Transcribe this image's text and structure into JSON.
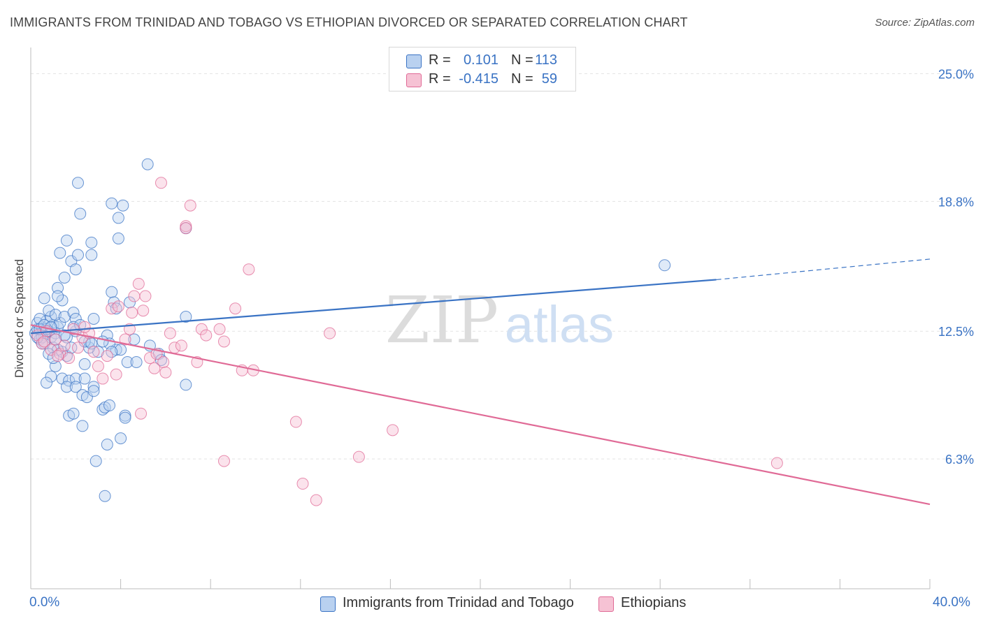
{
  "title": "IMMIGRANTS FROM TRINIDAD AND TOBAGO VS ETHIOPIAN DIVORCED OR SEPARATED CORRELATION CHART",
  "source": "Source: ZipAtlas.com",
  "watermark": {
    "zip": "ZIP",
    "atlas": "atlas"
  },
  "colors": {
    "blue": "#3a73c4",
    "blue_fill": "#b9d1f0",
    "pink": "#e06a96",
    "pink_fill": "#f6c2d4",
    "axis_text": "#3a73c4"
  },
  "legend": {
    "rows": [
      {
        "r_label": "R =",
        "r_value": "0.101",
        "n_label": "N =",
        "n_value": "113",
        "color": "blue"
      },
      {
        "r_label": "R =",
        "r_value": "-0.415",
        "n_label": "N =",
        "n_value": "59",
        "color": "pink"
      }
    ]
  },
  "bottom_legend": [
    "Immigrants from Trinidad and Tobago",
    "Ethiopians"
  ],
  "chart_data": {
    "type": "scatter",
    "xlabel": "",
    "ylabel": "Divorced or Separated",
    "xlim": [
      0,
      40
    ],
    "ylim": [
      0,
      26.2
    ],
    "x_tick_labels": [
      "0.0%",
      "40.0%"
    ],
    "y_ticks": [
      6.3,
      12.5,
      18.8,
      25.0
    ],
    "y_tick_labels": [
      "6.3%",
      "12.5%",
      "18.8%",
      "25.0%"
    ],
    "grid": "horizontal dashed",
    "legend_placement": "top-center",
    "series": [
      {
        "name": "Immigrants from Trinidad and Tobago",
        "color": "blue",
        "trend": {
          "x0": 0,
          "y0": 12.4,
          "x1": 30.5,
          "y1": 15.0,
          "dash_to_x": 40,
          "dash_to_y": 16.0
        },
        "points": [
          [
            0.2,
            12.4
          ],
          [
            0.3,
            12.6
          ],
          [
            0.4,
            12.1
          ],
          [
            0.5,
            12.7
          ],
          [
            0.3,
            12.9
          ],
          [
            0.6,
            12.3
          ],
          [
            0.7,
            13.0
          ],
          [
            0.8,
            12.5
          ],
          [
            0.9,
            12.2
          ],
          [
            1.0,
            12.8
          ],
          [
            0.4,
            13.1
          ],
          [
            0.6,
            11.9
          ],
          [
            0.8,
            12.5
          ],
          [
            1.1,
            12.4
          ],
          [
            1.2,
            12.7
          ],
          [
            0.5,
            12.2
          ],
          [
            0.7,
            12.6
          ],
          [
            0.9,
            13.2
          ],
          [
            1.0,
            11.7
          ],
          [
            1.3,
            12.9
          ],
          [
            0.6,
            14.1
          ],
          [
            0.8,
            13.5
          ],
          [
            1.1,
            13.3
          ],
          [
            1.4,
            14.0
          ],
          [
            1.2,
            14.6
          ],
          [
            1.5,
            15.1
          ],
          [
            1.3,
            16.3
          ],
          [
            1.6,
            16.9
          ],
          [
            1.8,
            15.9
          ],
          [
            2.0,
            15.5
          ],
          [
            2.1,
            16.2
          ],
          [
            2.7,
            16.2
          ],
          [
            2.7,
            16.8
          ],
          [
            2.2,
            18.2
          ],
          [
            3.6,
            18.7
          ],
          [
            4.1,
            18.6
          ],
          [
            3.9,
            18.0
          ],
          [
            2.1,
            19.7
          ],
          [
            3.9,
            17.0
          ],
          [
            5.2,
            20.6
          ],
          [
            6.9,
            17.5
          ],
          [
            1.2,
            14.2
          ],
          [
            1.5,
            13.2
          ],
          [
            1.9,
            13.4
          ],
          [
            2.0,
            13.1
          ],
          [
            2.8,
            13.1
          ],
          [
            3.4,
            12.3
          ],
          [
            3.6,
            14.4
          ],
          [
            3.7,
            13.9
          ],
          [
            3.8,
            13.6
          ],
          [
            4.4,
            13.9
          ],
          [
            1.1,
            10.8
          ],
          [
            0.9,
            10.3
          ],
          [
            0.7,
            10.0
          ],
          [
            1.4,
            10.2
          ],
          [
            1.7,
            10.1
          ],
          [
            1.6,
            9.8
          ],
          [
            2.0,
            10.2
          ],
          [
            2.4,
            10.9
          ],
          [
            2.4,
            10.2
          ],
          [
            2.0,
            9.8
          ],
          [
            2.3,
            9.4
          ],
          [
            2.5,
            9.3
          ],
          [
            2.8,
            9.8
          ],
          [
            2.8,
            9.6
          ],
          [
            3.2,
            8.7
          ],
          [
            3.3,
            8.8
          ],
          [
            3.5,
            8.9
          ],
          [
            4.2,
            8.4
          ],
          [
            4.2,
            8.3
          ],
          [
            1.7,
            8.4
          ],
          [
            1.9,
            8.5
          ],
          [
            2.3,
            7.9
          ],
          [
            3.4,
            7.0
          ],
          [
            4.0,
            7.3
          ],
          [
            2.9,
            6.2
          ],
          [
            3.3,
            4.5
          ],
          [
            4.6,
            12.1
          ],
          [
            5.3,
            11.8
          ],
          [
            5.7,
            11.4
          ],
          [
            5.8,
            11.1
          ],
          [
            3.8,
            11.6
          ],
          [
            4.0,
            11.6
          ],
          [
            3.5,
            11.9
          ],
          [
            3.0,
            11.5
          ],
          [
            2.6,
            11.7
          ],
          [
            2.6,
            12.0
          ],
          [
            1.4,
            11.5
          ],
          [
            1.6,
            11.3
          ],
          [
            1.8,
            11.7
          ],
          [
            4.3,
            11.0
          ],
          [
            4.7,
            11.0
          ],
          [
            3.6,
            11.5
          ],
          [
            6.9,
            13.2
          ],
          [
            6.9,
            9.9
          ],
          [
            28.2,
            15.7
          ],
          [
            1.2,
            11.6
          ],
          [
            1.6,
            12.2
          ],
          [
            2.0,
            12.5
          ],
          [
            2.4,
            12.0
          ],
          [
            0.5,
            11.9
          ],
          [
            0.3,
            12.2
          ],
          [
            0.8,
            11.4
          ],
          [
            1.0,
            11.2
          ],
          [
            1.9,
            12.7
          ],
          [
            2.2,
            12.8
          ],
          [
            0.4,
            12.6
          ],
          [
            0.6,
            12.8
          ],
          [
            1.1,
            12.1
          ],
          [
            1.5,
            12.3
          ],
          [
            2.7,
            11.9
          ],
          [
            3.2,
            12.0
          ],
          [
            0.9,
            12.7
          ]
        ]
      },
      {
        "name": "Ethiopians",
        "color": "pink",
        "trend": {
          "x0": 0,
          "y0": 12.8,
          "x1": 40,
          "y1": 4.1
        },
        "points": [
          [
            0.3,
            12.3
          ],
          [
            0.5,
            11.9
          ],
          [
            0.7,
            12.5
          ],
          [
            0.9,
            11.6
          ],
          [
            1.1,
            12.1
          ],
          [
            1.3,
            11.4
          ],
          [
            1.5,
            11.8
          ],
          [
            1.7,
            11.2
          ],
          [
            1.9,
            12.6
          ],
          [
            2.1,
            11.7
          ],
          [
            2.3,
            12.2
          ],
          [
            2.6,
            12.4
          ],
          [
            2.8,
            11.5
          ],
          [
            3.0,
            10.8
          ],
          [
            3.2,
            10.2
          ],
          [
            3.4,
            11.3
          ],
          [
            3.6,
            13.6
          ],
          [
            3.9,
            13.7
          ],
          [
            4.2,
            12.1
          ],
          [
            4.4,
            12.6
          ],
          [
            4.6,
            14.2
          ],
          [
            4.8,
            14.8
          ],
          [
            5.1,
            14.2
          ],
          [
            4.5,
            13.4
          ],
          [
            5.0,
            13.5
          ],
          [
            5.3,
            11.2
          ],
          [
            5.6,
            11.4
          ],
          [
            5.9,
            11.0
          ],
          [
            6.2,
            12.4
          ],
          [
            6.4,
            11.7
          ],
          [
            6.7,
            11.8
          ],
          [
            6.9,
            17.6
          ],
          [
            6.9,
            17.5
          ],
          [
            7.1,
            18.6
          ],
          [
            5.8,
            19.7
          ],
          [
            7.4,
            11.0
          ],
          [
            7.6,
            12.6
          ],
          [
            7.8,
            12.3
          ],
          [
            8.4,
            12.6
          ],
          [
            8.6,
            12.0
          ],
          [
            9.1,
            13.6
          ],
          [
            9.4,
            10.6
          ],
          [
            9.7,
            15.5
          ],
          [
            9.9,
            10.6
          ],
          [
            11.8,
            8.1
          ],
          [
            12.1,
            5.1
          ],
          [
            12.7,
            4.3
          ],
          [
            13.3,
            12.4
          ],
          [
            14.6,
            6.4
          ],
          [
            16.1,
            7.7
          ],
          [
            8.6,
            6.2
          ],
          [
            33.2,
            6.1
          ],
          [
            6.0,
            10.5
          ],
          [
            5.5,
            10.7
          ],
          [
            4.9,
            8.5
          ],
          [
            3.8,
            10.4
          ],
          [
            2.4,
            12.7
          ],
          [
            1.2,
            11.3
          ],
          [
            0.6,
            12.0
          ]
        ]
      }
    ]
  }
}
